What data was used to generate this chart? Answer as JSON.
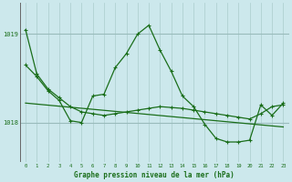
{
  "background_color": "#cce8ec",
  "grid_color_v": "#aacccc",
  "grid_color_h": "#99bbbb",
  "line_color": "#1a6e1a",
  "title": "Graphe pression niveau de la mer (hPa)",
  "xlim": [
    -0.5,
    23.5
  ],
  "ylim": [
    1017.55,
    1019.35
  ],
  "yticks": [
    1018,
    1019
  ],
  "xticks": [
    0,
    1,
    2,
    3,
    4,
    5,
    6,
    7,
    8,
    9,
    10,
    11,
    12,
    13,
    14,
    15,
    16,
    17,
    18,
    19,
    20,
    21,
    22,
    23
  ],
  "series_steep": {
    "x": [
      0,
      1,
      2,
      3,
      4,
      5,
      6,
      7,
      8,
      9,
      10,
      11,
      12,
      13,
      14,
      15,
      16,
      17,
      18,
      19,
      20,
      21,
      22,
      23
    ],
    "y": [
      1019.05,
      1018.55,
      1018.38,
      1018.28,
      1018.18,
      1018.12,
      1018.1,
      1018.08,
      1018.1,
      1018.12,
      1018.14,
      1018.16,
      1018.18,
      1018.17,
      1018.16,
      1018.14,
      1018.12,
      1018.1,
      1018.08,
      1018.06,
      1018.04,
      1018.1,
      1018.18,
      1018.2
    ]
  },
  "series_wave": {
    "x": [
      0,
      1,
      2,
      3,
      4,
      5,
      6,
      7,
      8,
      9,
      10,
      11,
      12,
      13,
      14,
      15,
      16,
      17,
      18,
      19,
      20,
      21,
      22,
      23
    ],
    "y": [
      1018.65,
      1018.52,
      1018.36,
      1018.25,
      1018.02,
      1018.0,
      1018.3,
      1018.32,
      1018.62,
      1018.78,
      1019.0,
      1019.1,
      1018.82,
      1018.58,
      1018.3,
      1018.18,
      1017.98,
      1017.82,
      1017.78,
      1017.78,
      1017.8,
      1018.2,
      1018.08,
      1018.22
    ]
  },
  "series_flat": {
    "x": [
      0,
      23
    ],
    "y": [
      1018.22,
      1017.95
    ]
  }
}
